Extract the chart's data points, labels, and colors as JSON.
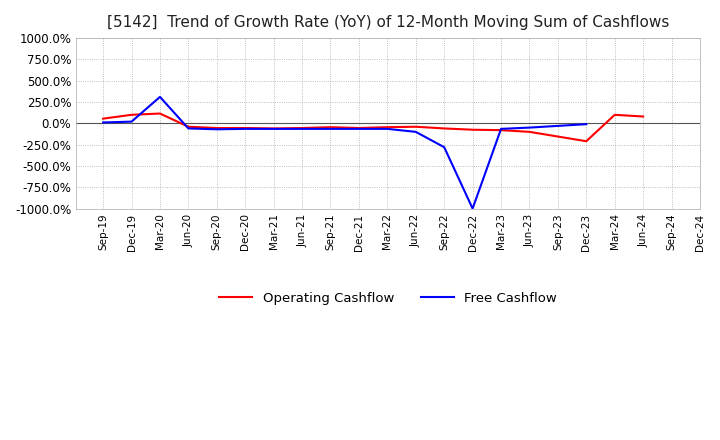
{
  "title": "[5142]  Trend of Growth Rate (YoY) of 12-Month Moving Sum of Cashflows",
  "ylim": [
    -1000,
    1000
  ],
  "yticks": [
    -1000,
    -750,
    -500,
    -250,
    0,
    250,
    500,
    750,
    1000
  ],
  "ytick_labels": [
    "-1000.0%",
    "-750.0%",
    "-500.0%",
    "-250.0%",
    "0.0%",
    "250.0%",
    "500.0%",
    "750.0%",
    "1000.0%"
  ],
  "xlabel_dates": [
    "Sep-19",
    "Dec-19",
    "Mar-20",
    "Jun-20",
    "Sep-20",
    "Dec-20",
    "Mar-21",
    "Jun-21",
    "Sep-21",
    "Dec-21",
    "Mar-22",
    "Jun-22",
    "Sep-22",
    "Dec-22",
    "Mar-23",
    "Jun-23",
    "Sep-23",
    "Dec-23",
    "Mar-24",
    "Jun-24",
    "Sep-24",
    "Dec-24"
  ],
  "operating_cashflow": [
    55,
    100,
    115,
    -40,
    -55,
    -55,
    -60,
    -55,
    -45,
    -55,
    -45,
    -40,
    -60,
    -75,
    -80,
    -100,
    -155,
    -210,
    100,
    80,
    null,
    null
  ],
  "free_cashflow": [
    10,
    20,
    310,
    -60,
    -70,
    -65,
    -65,
    -65,
    -65,
    -65,
    -65,
    -100,
    -280,
    -1000,
    -65,
    -50,
    -30,
    -10,
    null,
    null,
    null,
    null
  ],
  "operating_color": "#ff0000",
  "free_color": "#0000ff",
  "background_color": "#ffffff",
  "grid_color": "#aaaaaa",
  "title_fontsize": 11,
  "legend_labels": [
    "Operating Cashflow",
    "Free Cashflow"
  ]
}
